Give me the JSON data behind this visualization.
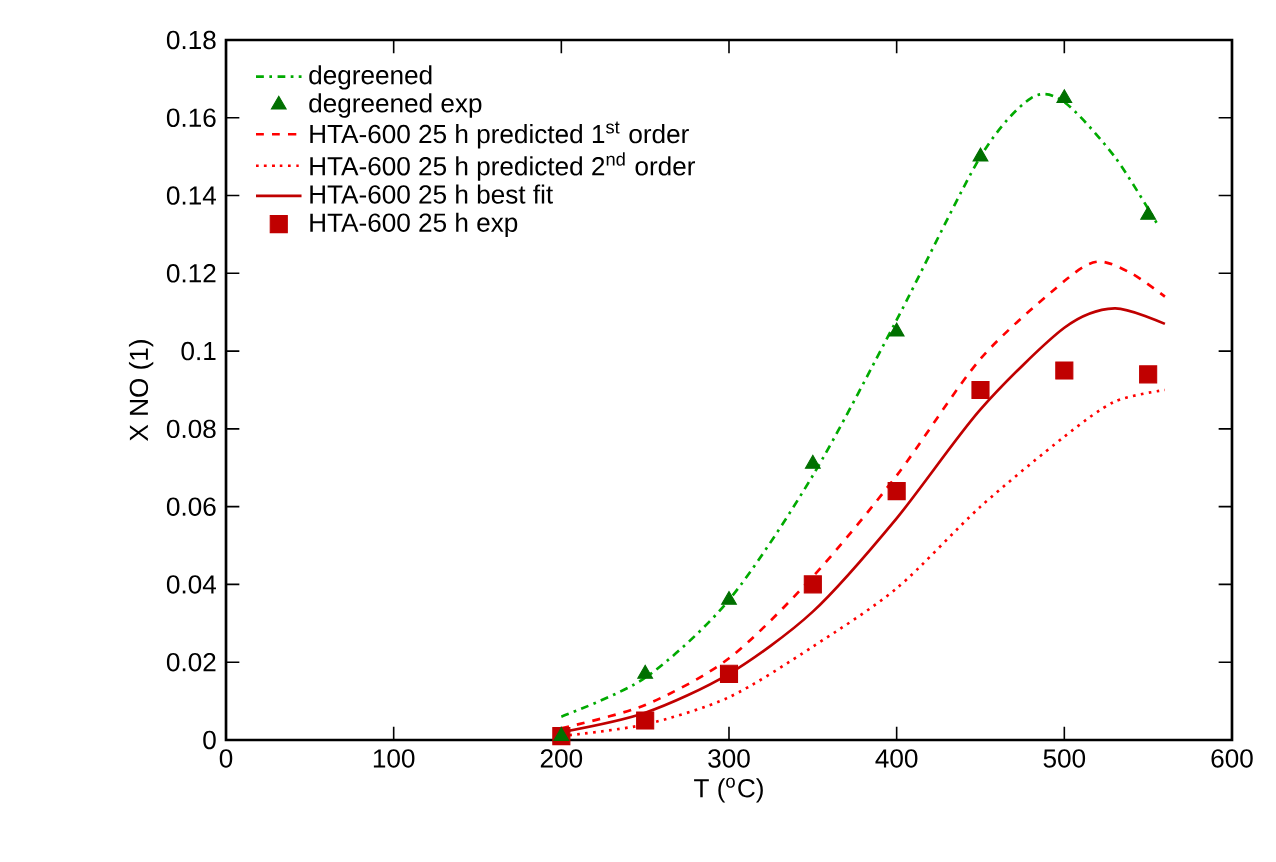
{
  "chart_data": {
    "type": "line",
    "xlabel": "T ($^{o}$C)",
    "ylabel": "X NO (1)",
    "xlim": [
      0,
      600
    ],
    "xticks": [
      0,
      100,
      200,
      300,
      400,
      500,
      600
    ],
    "ylim": [
      0,
      0.18
    ],
    "yticks": [
      0,
      0.02,
      0.04,
      0.06,
      0.08,
      0.1,
      0.12,
      0.14,
      0.16,
      0.18
    ],
    "grid": false,
    "legend": "top left",
    "series": [
      {
        "name": "degreened",
        "line_style": "dashdot",
        "marker": "none",
        "color": "#00aa00",
        "x": [
          200,
          250,
          300,
          350,
          400,
          450,
          480,
          500,
          530,
          555
        ],
        "values": [
          0.006,
          0.016,
          0.036,
          0.068,
          0.108,
          0.15,
          0.165,
          0.164,
          0.15,
          0.133
        ]
      },
      {
        "name": "degreened exp",
        "type": "scatter",
        "marker": "triangle",
        "color": "#007000",
        "x": [
          200,
          250,
          300,
          350,
          400,
          450,
          500,
          550
        ],
        "values": [
          0.001,
          0.017,
          0.036,
          0.071,
          0.105,
          0.15,
          0.165,
          0.135
        ]
      },
      {
        "name": "HTA-600 25 h predicted 1$^{st}$ order",
        "line_style": "dashed",
        "marker": "none",
        "color": "#ff0000",
        "x": [
          200,
          250,
          300,
          350,
          400,
          450,
          500,
          520,
          540,
          560
        ],
        "values": [
          0.003,
          0.009,
          0.021,
          0.042,
          0.068,
          0.098,
          0.118,
          0.123,
          0.12,
          0.114
        ]
      },
      {
        "name": "HTA-600 25 h predicted 2$^{nd}$ order",
        "line_style": "dotted",
        "marker": "none",
        "color": "#ff0000",
        "x": [
          200,
          250,
          300,
          350,
          400,
          450,
          500,
          530,
          560
        ],
        "values": [
          0.001,
          0.004,
          0.011,
          0.024,
          0.039,
          0.06,
          0.078,
          0.087,
          0.09
        ]
      },
      {
        "name": "HTA-600 25 h best fit",
        "line_style": "solid",
        "marker": "none",
        "color": "#c00000",
        "x": [
          200,
          250,
          300,
          350,
          400,
          450,
          500,
          530,
          560
        ],
        "values": [
          0.002,
          0.007,
          0.017,
          0.033,
          0.057,
          0.085,
          0.106,
          0.111,
          0.107
        ]
      },
      {
        "name": "HTA-600 25 h exp",
        "type": "scatter",
        "marker": "square",
        "color": "#c00000",
        "x": [
          200,
          250,
          300,
          350,
          400,
          450,
          500,
          550
        ],
        "values": [
          0.001,
          0.005,
          0.017,
          0.04,
          0.064,
          0.09,
          0.095,
          0.094
        ]
      }
    ]
  }
}
